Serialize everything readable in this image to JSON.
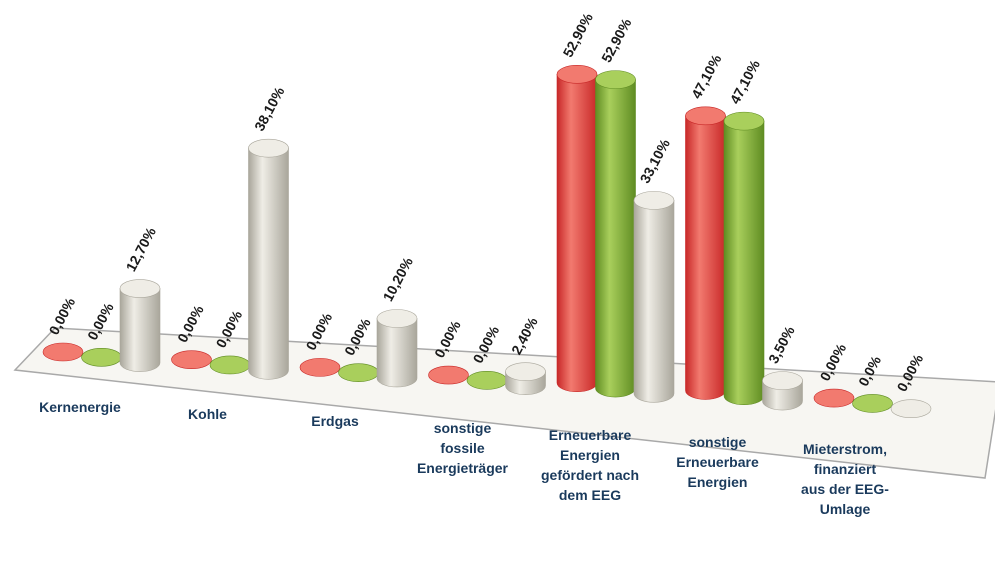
{
  "chart_data": {
    "type": "bar",
    "title": "",
    "xlabel": "",
    "ylabel": "",
    "categories": [
      "Kernenergie",
      "Kohle",
      "Erdgas",
      "sonstige fossile Energieträger",
      "Erneuerbare Energien gefördert nach dem EEG",
      "sonstige Erneuerbare Energien",
      "Mieterstrom, finanziert aus der EEG-Umlage"
    ],
    "category_lines": [
      [
        "Kernenergie"
      ],
      [
        "Kohle"
      ],
      [
        "Erdgas"
      ],
      [
        "sonstige",
        "fossile",
        "Energieträger"
      ],
      [
        "Erneuerbare",
        "Energien",
        "gefördert nach",
        "dem EEG"
      ],
      [
        "sonstige",
        "Erneuerbare",
        "Energien"
      ],
      [
        "Mieterstrom,",
        "finanziert",
        "aus der EEG-",
        "Umlage"
      ]
    ],
    "series": [
      {
        "values": [
          0.0,
          0.0,
          0.0,
          0.0,
          52.9,
          47.1,
          0.0
        ],
        "labels": [
          "0,00%",
          "0,00%",
          "0,00%",
          "0,00%",
          "52,90%",
          "47,10%",
          "0,00%"
        ],
        "color": "#e84c4c"
      },
      {
        "values": [
          0.0,
          0.0,
          0.0,
          0.0,
          52.9,
          47.1,
          0.0
        ],
        "labels": [
          "0,00%",
          "0,00%",
          "0,00%",
          "0,00%",
          "52,90%",
          "47,10%",
          "0,0%"
        ],
        "color": "#8cb83e"
      },
      {
        "values": [
          12.7,
          38.1,
          10.2,
          2.4,
          33.1,
          3.5,
          0.0
        ],
        "labels": [
          "12,70%",
          "38,10%",
          "10,20%",
          "2,40%",
          "33,10%",
          "3,50%",
          "0,00%"
        ],
        "color": "#dcdad2"
      }
    ],
    "colors": {
      "series_1_light": "#f27a6f",
      "series_1_dark": "#c82828",
      "series_2_light": "#a9cf5c",
      "series_2_dark": "#5f8c22",
      "series_3_light": "#efede6",
      "series_3_dark": "#a9a69b",
      "floor_fill": "#f7f6f2",
      "floor_edge": "#a9a9a9"
    },
    "grid": false,
    "legend": "none"
  }
}
